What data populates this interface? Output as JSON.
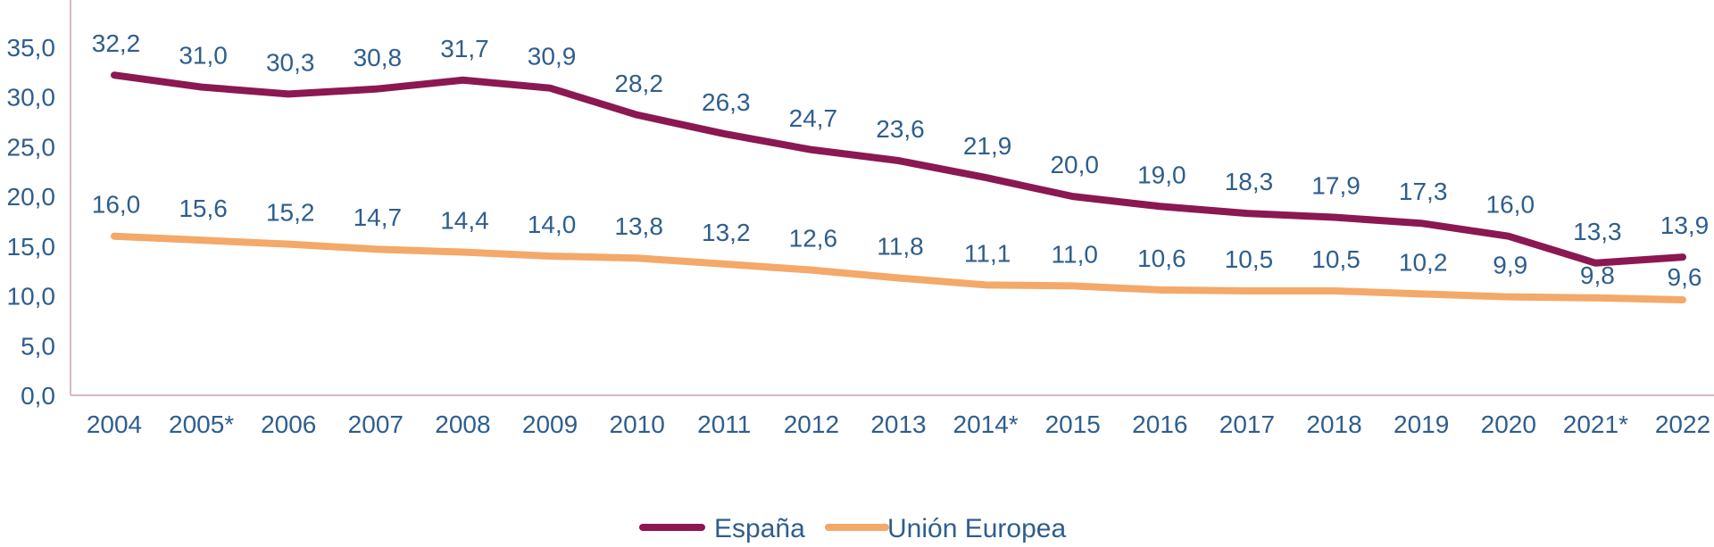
{
  "chart_data": {
    "type": "line",
    "title": "",
    "xlabel": "",
    "ylabel": "",
    "categories": [
      "2004",
      "2005*",
      "2006",
      "2007",
      "2008",
      "2009",
      "2010",
      "2011",
      "2012",
      "2013",
      "2014*",
      "2015",
      "2016",
      "2017",
      "2018",
      "2019",
      "2020",
      "2021*",
      "2022"
    ],
    "ylim": [
      0,
      35
    ],
    "yticks": [
      0,
      5,
      10,
      15,
      20,
      25,
      30,
      35
    ],
    "ytick_labels": [
      "0,0",
      "5,0",
      "10,0",
      "15,0",
      "20,0",
      "25,0",
      "30,0",
      "35,0"
    ],
    "grid": false,
    "legend_position": "bottom",
    "series": [
      {
        "name": "España",
        "color": "#8B1852",
        "values": [
          32.2,
          31.0,
          30.3,
          30.8,
          31.7,
          30.9,
          28.2,
          26.3,
          24.7,
          23.6,
          21.9,
          20.0,
          19.0,
          18.3,
          17.9,
          17.3,
          16.0,
          13.3,
          13.9
        ],
        "labels": [
          "32,2",
          "31,0",
          "30,3",
          "30,8",
          "31,7",
          "30,9",
          "28,2",
          "26,3",
          "24,7",
          "23,6",
          "21,9",
          "20,0",
          "19,0",
          "18,3",
          "17,9",
          "17,3",
          "16,0",
          "13,3",
          "13,9"
        ]
      },
      {
        "name": "Unión Europea",
        "color": "#F4A86A",
        "values": [
          16.0,
          15.6,
          15.2,
          14.7,
          14.4,
          14.0,
          13.8,
          13.2,
          12.6,
          11.8,
          11.1,
          11.0,
          10.6,
          10.5,
          10.5,
          10.2,
          9.9,
          9.8,
          9.6
        ],
        "labels": [
          "16,0",
          "15,6",
          "15,2",
          "14,7",
          "14,4",
          "14,0",
          "13,8",
          "13,2",
          "12,6",
          "11,8",
          "11,1",
          "11,0",
          "10,6",
          "10,5",
          "10,5",
          "10,2",
          "9,9",
          "9,8",
          "9,6"
        ]
      }
    ]
  },
  "colors": {
    "text": "#2E5E8E",
    "axis": "#D9B8C8"
  }
}
